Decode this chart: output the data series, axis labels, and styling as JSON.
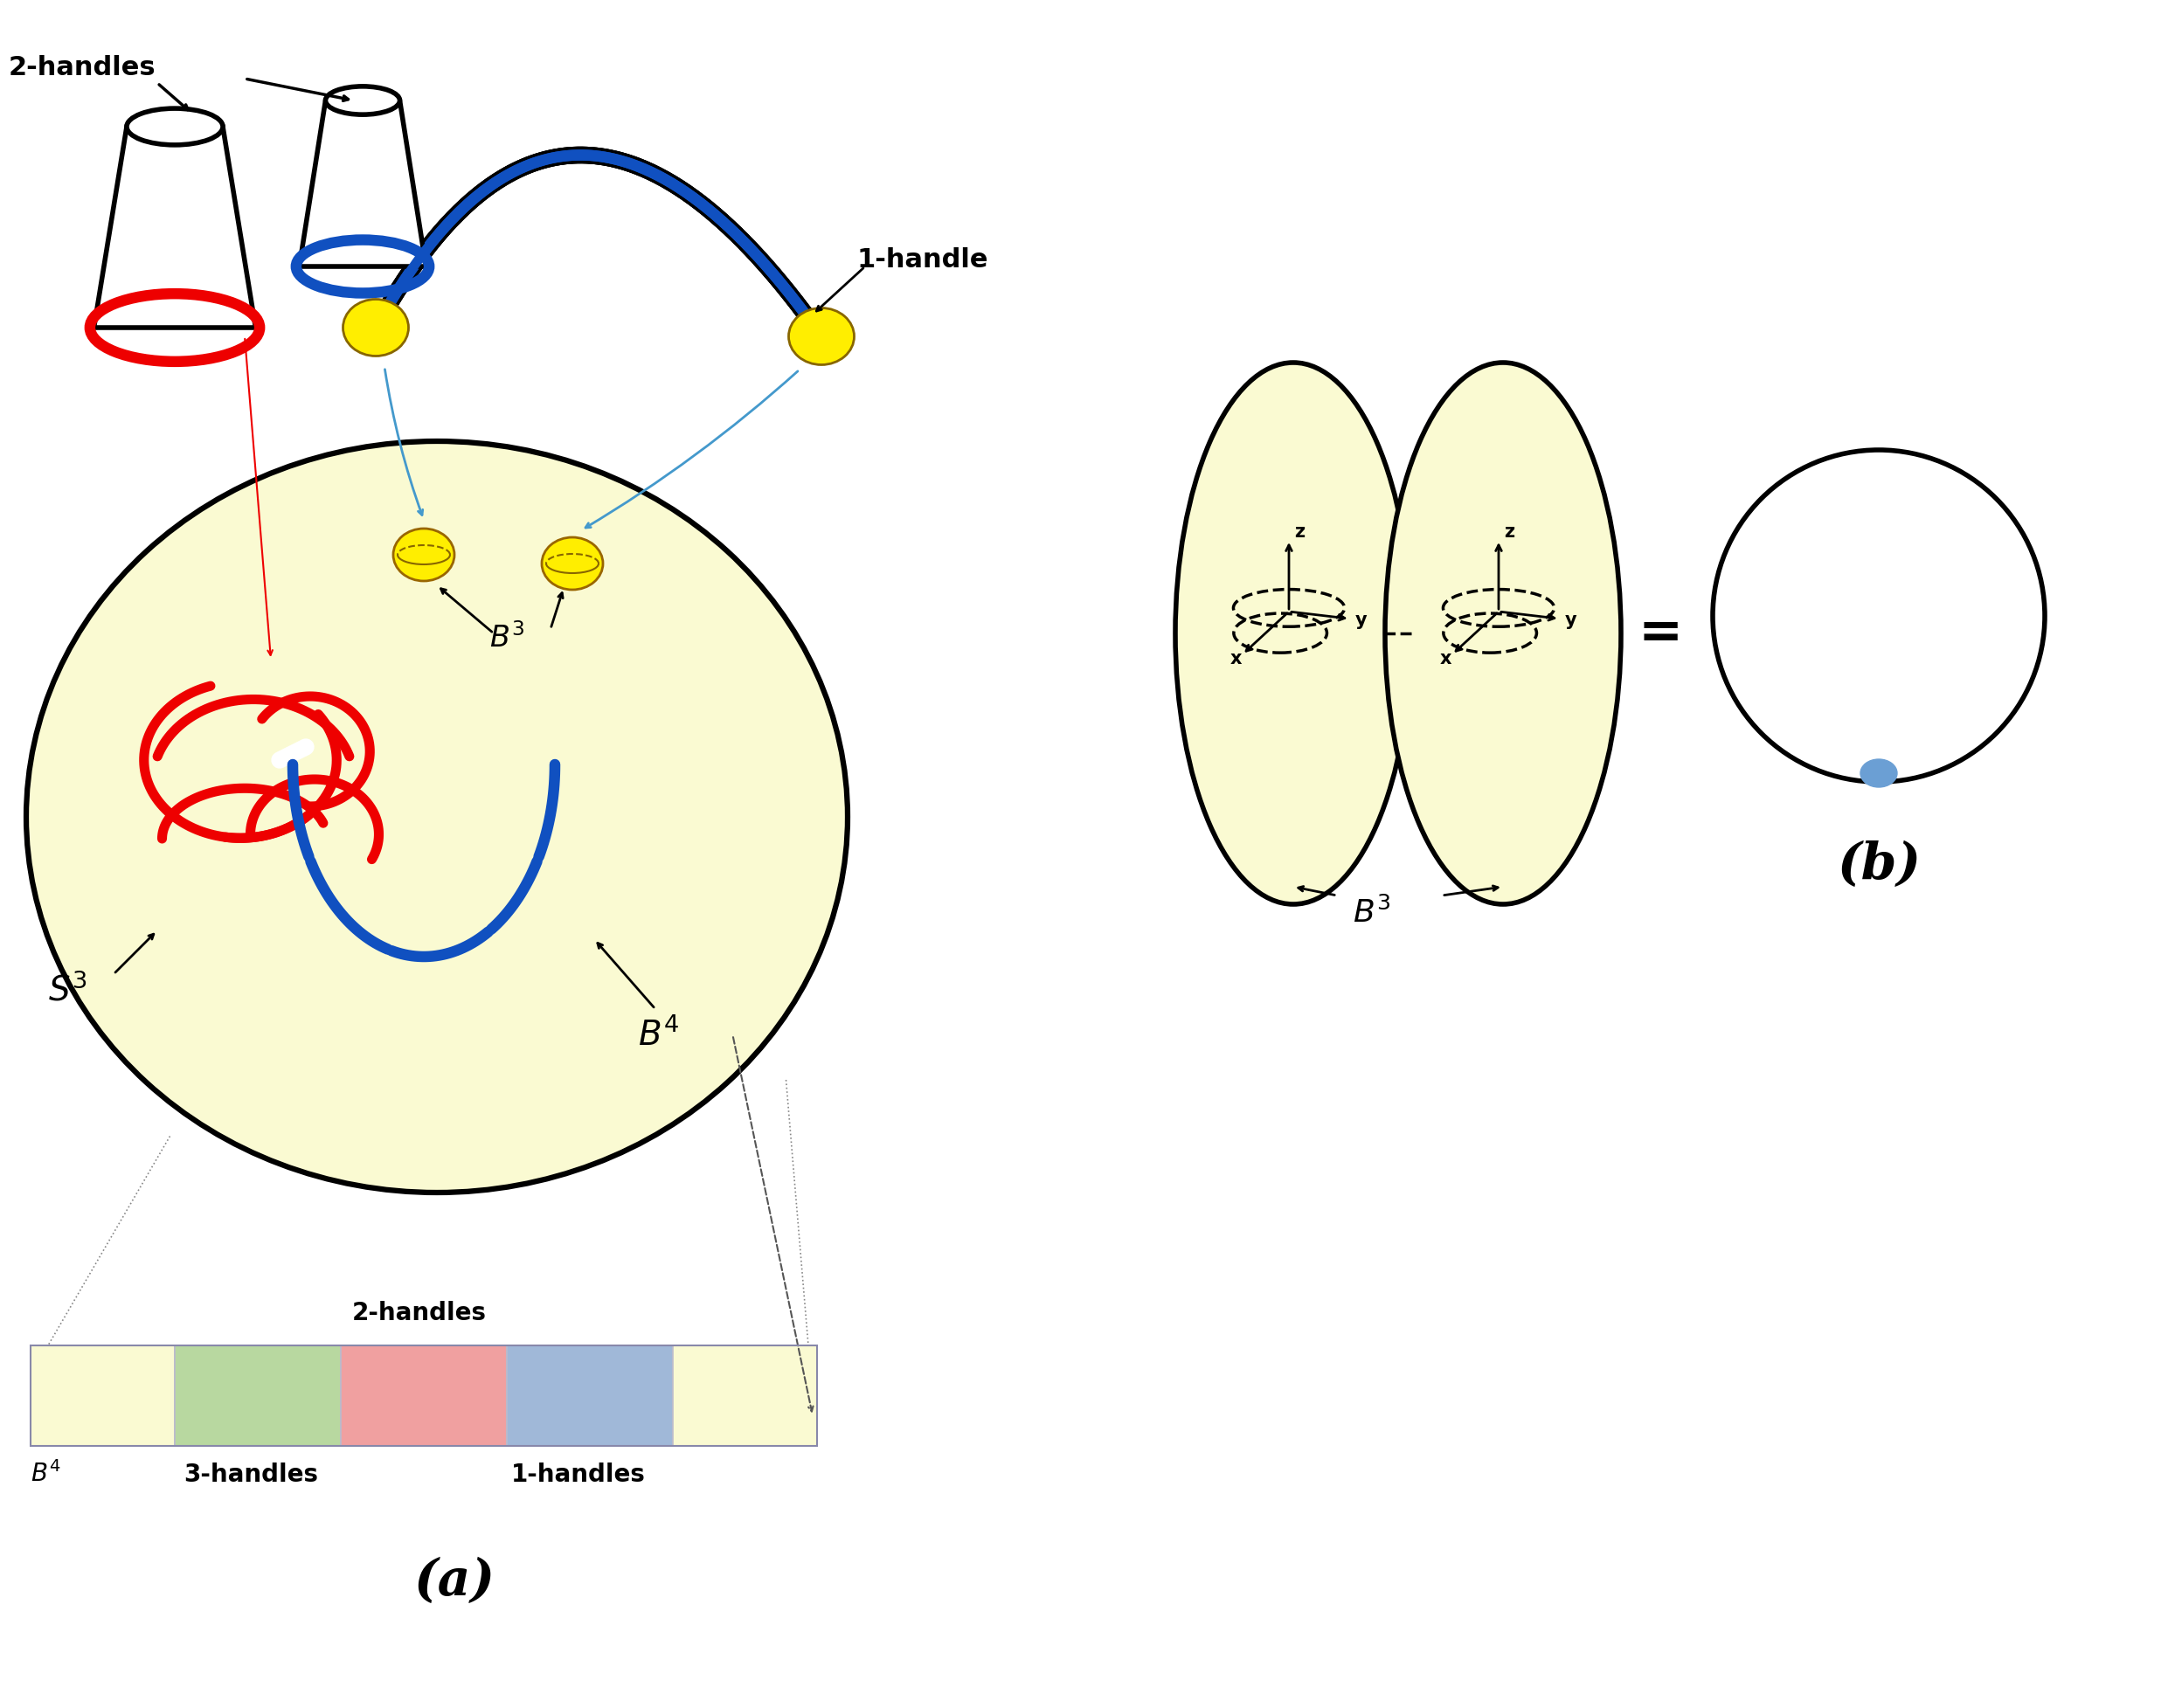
{
  "bg_color": "#ffffff",
  "yellow_fill": "#fafad2",
  "green_fill": "#b8d8a0",
  "red_fill": "#f0a0a0",
  "blue_fill": "#a0b8d8",
  "red_color": "#ee0000",
  "blue_color": "#1050c0",
  "black_color": "#000000",
  "yellow_ball": "#ffee00",
  "blue_dot": "#6b9fd4",
  "cyan_arrow": "#4499cc",
  "label_a": "(a)",
  "label_b": "(b)",
  "label_2handles": "2-handles",
  "label_1handle": "1-handle",
  "label_3handles": "3-handles",
  "label_1handles": "1-handles",
  "label_2handles_bar": "2-handles",
  "fontsize_large": 28,
  "fontsize_med": 22,
  "fontsize_small": 18,
  "fontsize_ab": 42
}
